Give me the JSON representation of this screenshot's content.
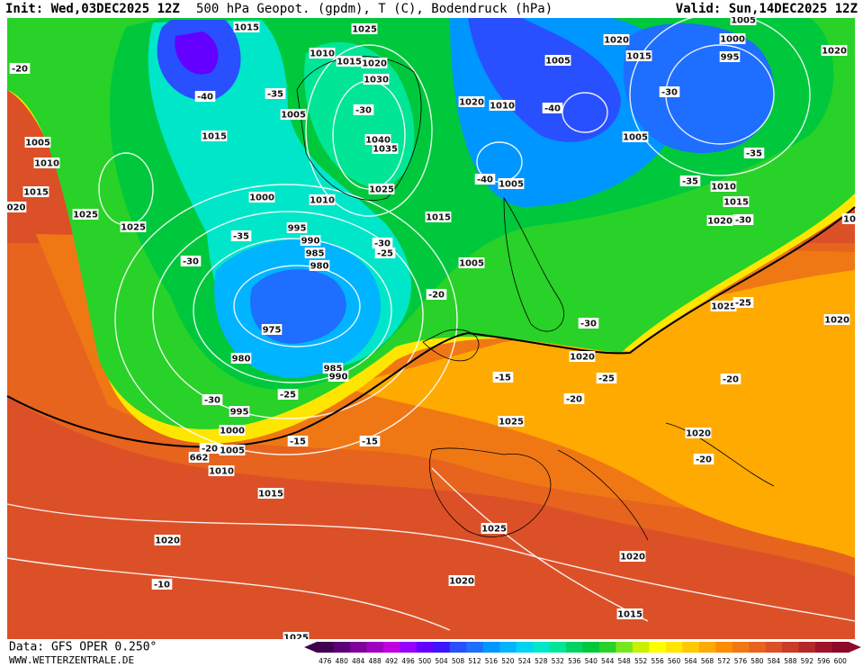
{
  "header": {
    "init": "Init: Wed,03DEC2025 12Z",
    "title": "500 hPa Geopot. (gpdm), T (C), Bodendruck (hPa)",
    "valid": "Valid: Sun,14DEC2025 12Z"
  },
  "footer": {
    "data_source": "Data: GFS OPER 0.250°",
    "website": "WWW.WETTERZENTRALE.DE"
  },
  "colorbar": {
    "ticks": [
      476,
      480,
      484,
      488,
      492,
      496,
      500,
      504,
      508,
      512,
      516,
      520,
      524,
      528,
      532,
      536,
      540,
      544,
      548,
      552,
      556,
      560,
      564,
      568,
      572,
      576,
      580,
      584,
      588,
      592,
      596,
      600
    ],
    "colors": [
      "#400050",
      "#5a0078",
      "#80009a",
      "#a000c0",
      "#c000e0",
      "#9600ff",
      "#6400ff",
      "#3c14ff",
      "#2850ff",
      "#1e6eff",
      "#0096ff",
      "#00b4ff",
      "#00d2f0",
      "#00e6c8",
      "#00e696",
      "#00d264",
      "#00c83c",
      "#28d228",
      "#78e61e",
      "#c8f000",
      "#ffff00",
      "#ffe600",
      "#ffc800",
      "#ffaa00",
      "#ff8c00",
      "#f07814",
      "#e6641e",
      "#dc5028",
      "#c83c28",
      "#b42828",
      "#a01428",
      "#8c0a28"
    ]
  },
  "map_labels": [
    "1015",
    "1025",
    "1010",
    "1015",
    "1020",
    "1030",
    "-20",
    "-40",
    "-35",
    "-30",
    "1005",
    "1015",
    "1005",
    "1010",
    "1015",
    "020",
    "1025",
    "1025",
    "1040",
    "1035",
    "1000",
    "1010",
    "1025",
    "1015",
    "995",
    "990",
    "985",
    "980",
    "-35",
    "-30",
    "-30",
    "-25",
    "975",
    "980",
    "985",
    "990",
    "-30",
    "-25",
    "995",
    "1000",
    "-20",
    "1005",
    "662",
    "1010",
    "1015",
    "-15",
    "-15",
    "1020",
    "-10",
    "1025",
    "1020",
    "1020",
    "1015",
    "1025",
    "1020",
    "-20",
    "-20",
    "1025",
    "1020",
    "-15",
    "-20",
    "-25",
    "1020",
    "-20",
    "1005",
    "-30",
    "1020",
    "1010",
    "-40",
    "-40",
    "1005",
    "1005",
    "1020",
    "1015",
    "1005",
    "1000",
    "995",
    "1020",
    "-30",
    "1005",
    "-35",
    "-35",
    "1010",
    "1015",
    "1020",
    "-30",
    "10",
    "-25",
    "1025"
  ]
}
